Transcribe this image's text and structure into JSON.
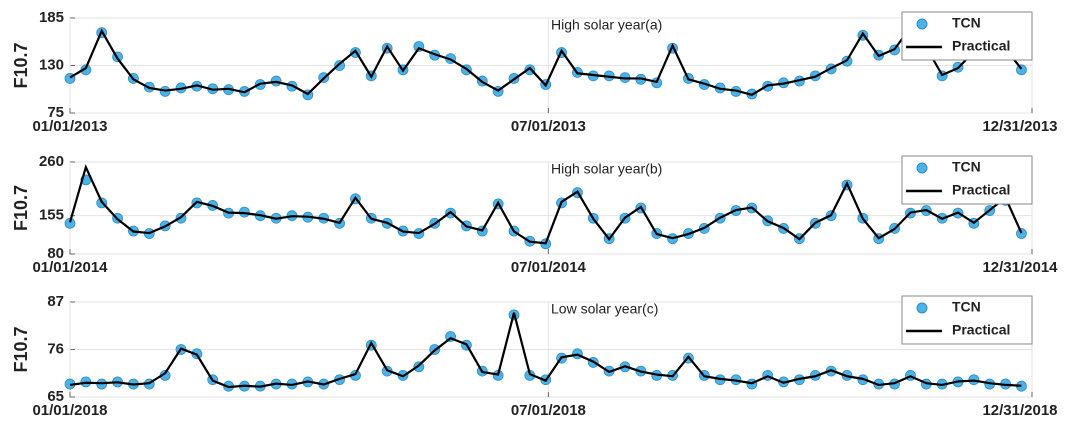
{
  "chart_data": [
    {
      "type": "line",
      "title": "High solar year(a)",
      "ylabel": "F10.7",
      "x": [
        0,
        6,
        12,
        18,
        24,
        30,
        36,
        42,
        48,
        54,
        60,
        66,
        72,
        78,
        84,
        90,
        96,
        102,
        108,
        114,
        120,
        126,
        132,
        138,
        144,
        150,
        156,
        162,
        168,
        174,
        180,
        186,
        192,
        198,
        204,
        210,
        216,
        222,
        228,
        234,
        240,
        246,
        252,
        258,
        264,
        270,
        276,
        282,
        288,
        294,
        300,
        306,
        312,
        318,
        324,
        330,
        336,
        342,
        348,
        354,
        360
      ],
      "xlim": [
        0,
        364
      ],
      "xticks": [
        {
          "value": 0,
          "label": "01/01/2013"
        },
        {
          "value": 181,
          "label": "07/01/2013"
        },
        {
          "value": 364,
          "label": "12/31/2013"
        }
      ],
      "ylim": [
        75,
        185
      ],
      "yticks": [
        75,
        130,
        185
      ],
      "grid": true,
      "legend": "upper right",
      "series": [
        {
          "name": "TCN",
          "color": "#4db3e6",
          "style": "markers",
          "values": [
            115,
            125,
            168,
            140,
            115,
            105,
            100,
            104,
            106,
            103,
            102,
            100,
            108,
            112,
            106,
            96,
            116,
            130,
            145,
            118,
            150,
            125,
            152,
            142,
            138,
            125,
            112,
            100,
            115,
            125,
            108,
            145,
            122,
            118,
            118,
            116,
            114,
            110,
            150,
            115,
            108,
            104,
            100,
            97,
            106,
            110,
            112,
            118,
            126,
            135,
            165,
            142,
            148,
            172,
            150,
            118,
            128,
            145,
            165,
            150,
            125
          ]
        },
        {
          "name": "Practical",
          "color": "#000000",
          "style": "line",
          "values": [
            116,
            127,
            170,
            138,
            114,
            104,
            101,
            103,
            107,
            102,
            103,
            99,
            109,
            111,
            107,
            97,
            115,
            132,
            147,
            117,
            152,
            124,
            150,
            143,
            137,
            126,
            111,
            101,
            114,
            127,
            107,
            147,
            121,
            119,
            117,
            115,
            115,
            111,
            153,
            114,
            109,
            103,
            101,
            96,
            107,
            109,
            113,
            117,
            127,
            136,
            167,
            141,
            149,
            174,
            151,
            119,
            127,
            146,
            166,
            149,
            126
          ]
        }
      ]
    },
    {
      "type": "line",
      "title": "High solar year(b)",
      "ylabel": "F10.7",
      "x": [
        0,
        6,
        12,
        18,
        24,
        30,
        36,
        42,
        48,
        54,
        60,
        66,
        72,
        78,
        84,
        90,
        96,
        102,
        108,
        114,
        120,
        126,
        132,
        138,
        144,
        150,
        156,
        162,
        168,
        174,
        180,
        186,
        192,
        198,
        204,
        210,
        216,
        222,
        228,
        234,
        240,
        246,
        252,
        258,
        264,
        270,
        276,
        282,
        288,
        294,
        300,
        306,
        312,
        318,
        324,
        330,
        336,
        342,
        348,
        354,
        360
      ],
      "xlim": [
        0,
        364
      ],
      "xticks": [
        {
          "value": 0,
          "label": "01/01/2014"
        },
        {
          "value": 181,
          "label": "07/01/2014"
        },
        {
          "value": 364,
          "label": "12/31/2014"
        }
      ],
      "ylim": [
        80,
        260
      ],
      "yticks": [
        80,
        155,
        260
      ],
      "grid": true,
      "legend": "upper right",
      "series": [
        {
          "name": "TCN",
          "color": "#4db3e6",
          "style": "markers",
          "values": [
            140,
            225,
            180,
            150,
            125,
            120,
            135,
            150,
            180,
            175,
            160,
            162,
            155,
            150,
            155,
            152,
            150,
            140,
            188,
            150,
            140,
            125,
            120,
            140,
            160,
            135,
            125,
            178,
            125,
            105,
            100,
            180,
            200,
            150,
            110,
            150,
            170,
            120,
            110,
            120,
            130,
            150,
            165,
            170,
            145,
            130,
            110,
            140,
            155,
            215,
            150,
            110,
            130,
            160,
            165,
            150,
            160,
            140,
            165,
            185,
            120
          ]
        },
        {
          "name": "Practical",
          "color": "#000000",
          "style": "line",
          "values": [
            142,
            250,
            182,
            148,
            124,
            121,
            134,
            152,
            182,
            174,
            161,
            160,
            156,
            149,
            154,
            153,
            149,
            141,
            190,
            149,
            141,
            124,
            121,
            139,
            162,
            134,
            126,
            180,
            124,
            104,
            101,
            182,
            202,
            149,
            109,
            151,
            172,
            119,
            111,
            119,
            131,
            151,
            166,
            171,
            144,
            131,
            109,
            141,
            156,
            218,
            149,
            111,
            129,
            161,
            166,
            149,
            161,
            141,
            166,
            190,
            121
          ]
        }
      ]
    },
    {
      "type": "line",
      "title": "Low solar year(c)",
      "ylabel": "F10.7",
      "x": [
        0,
        6,
        12,
        18,
        24,
        30,
        36,
        42,
        48,
        54,
        60,
        66,
        72,
        78,
        84,
        90,
        96,
        102,
        108,
        114,
        120,
        126,
        132,
        138,
        144,
        150,
        156,
        162,
        168,
        174,
        180,
        186,
        192,
        198,
        204,
        210,
        216,
        222,
        228,
        234,
        240,
        246,
        252,
        258,
        264,
        270,
        276,
        282,
        288,
        294,
        300,
        306,
        312,
        318,
        324,
        330,
        336,
        342,
        348,
        354,
        360
      ],
      "xlim": [
        0,
        364
      ],
      "xticks": [
        {
          "value": 0,
          "label": "01/01/2018"
        },
        {
          "value": 181,
          "label": "07/01/2018"
        },
        {
          "value": 364,
          "label": "12/31/2018"
        }
      ],
      "ylim": [
        65,
        87
      ],
      "yticks": [
        65,
        76,
        87
      ],
      "grid": true,
      "legend": "upper right",
      "series": [
        {
          "name": "TCN",
          "color": "#4db3e6",
          "style": "markers",
          "values": [
            68,
            68.5,
            68,
            68.5,
            68,
            68,
            70,
            76,
            75,
            69,
            67.5,
            67.5,
            67.5,
            68,
            68,
            68.5,
            68,
            69,
            70,
            77,
            71,
            70,
            72,
            76,
            79,
            77,
            71,
            70,
            84,
            70,
            69,
            74,
            75,
            73,
            71,
            72,
            71,
            70,
            70,
            74,
            70,
            69,
            69,
            68,
            70,
            68.5,
            69,
            70,
            71,
            70,
            69,
            68,
            68,
            70,
            68,
            68,
            68.5,
            69,
            68,
            68,
            67.5
          ]
        },
        {
          "name": "Practical",
          "color": "#000000",
          "style": "line",
          "values": [
            67.8,
            68.3,
            68.2,
            68.4,
            67.9,
            68.2,
            70.5,
            76.2,
            74.8,
            68.8,
            67.3,
            67.6,
            67.4,
            68.1,
            67.8,
            68.6,
            67.9,
            69.2,
            70.3,
            77.5,
            71.2,
            69.8,
            72.3,
            75.8,
            78.6,
            77.2,
            70.8,
            70.2,
            84.5,
            70.3,
            68.8,
            74.2,
            74.8,
            73.2,
            70.8,
            72.1,
            70.9,
            70.2,
            69.8,
            74.3,
            69.8,
            69.2,
            68.8,
            68.2,
            69.8,
            68.3,
            69.2,
            69.8,
            71.2,
            69.8,
            69.2,
            67.8,
            68.2,
            69.8,
            68.2,
            67.8,
            68.6,
            68.8,
            68.2,
            67.8,
            67.6
          ]
        }
      ]
    }
  ]
}
